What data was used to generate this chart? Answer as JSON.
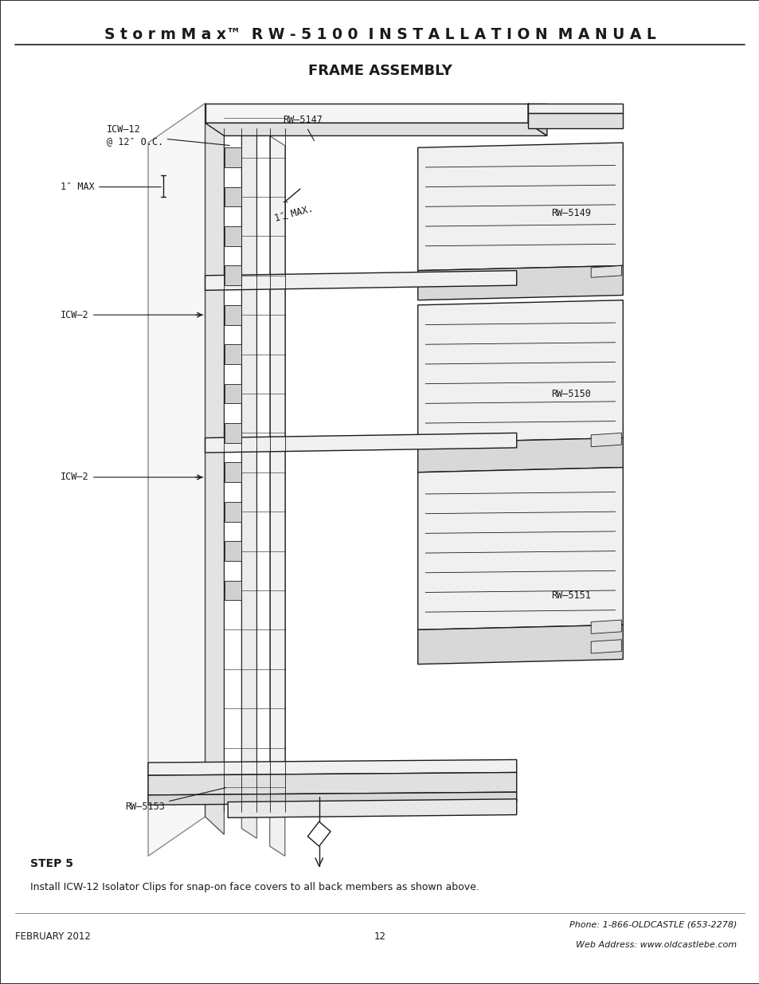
{
  "title_line1": "S t o r m M a x™  R W - 5 1 0 0  I N S T A L L A T I O N  M A N U A L",
  "title_line2": "FRAME ASSEMBLY",
  "step_label": "STEP 5",
  "step_text": "Install ICW-12 Isolator Clips for snap-on face covers to all back members as shown above.",
  "footer_left": "FEBRUARY 2012",
  "footer_center": "12",
  "footer_right_line1": "Phone: 1-866-OLDCASTLE (653-2278)",
  "footer_right_line2": "Web Address: www.oldcastlebe.com",
  "bg_color": "#ffffff",
  "line_color": "#1a1a1a"
}
